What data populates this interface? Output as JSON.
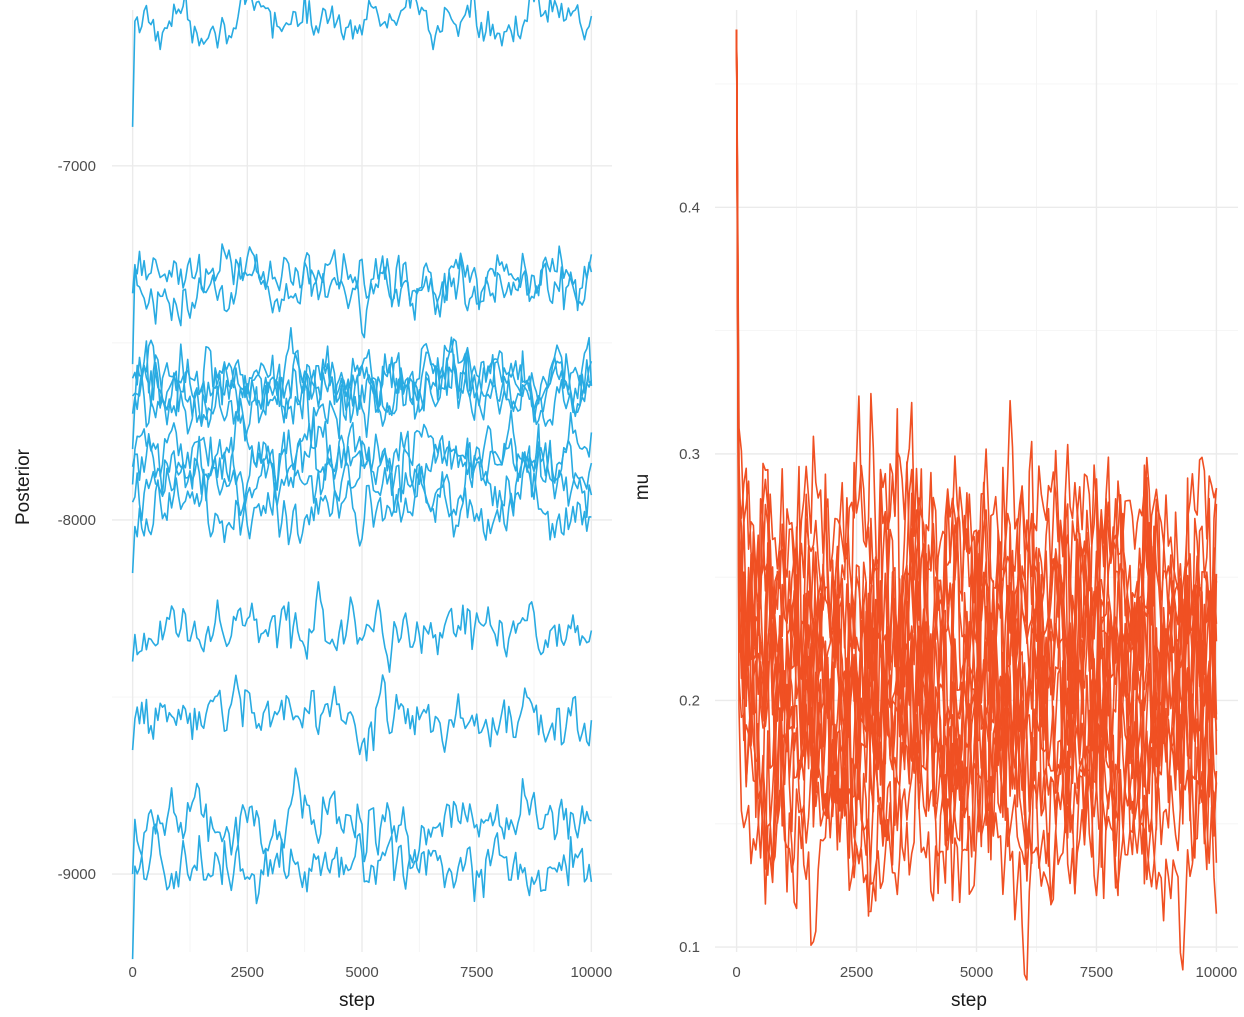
{
  "chart_data": [
    {
      "type": "line",
      "xlabel": "step",
      "ylabel": "Posterior",
      "xlim": [
        0,
        10000
      ],
      "ylim": [
        -9220,
        -6560
      ],
      "x_ticks": [
        0,
        2500,
        5000,
        7500,
        10000
      ],
      "x_tick_labels": [
        "0",
        "2500",
        "5000",
        "7500",
        "10000"
      ],
      "y_ticks": [
        -9000,
        -8000,
        -7000
      ],
      "y_tick_labels": [
        "-9000",
        "-8000",
        "-7000"
      ],
      "grid": true,
      "color": "#29abe2",
      "series": [
        {
          "start": -6890,
          "level": -6590,
          "noise": 30
        },
        {
          "start": -7560,
          "level": -7310,
          "noise": 35
        },
        {
          "start": -7360,
          "level": -7350,
          "noise": 35
        },
        {
          "start": -7800,
          "level": -7600,
          "noise": 40
        },
        {
          "start": -7650,
          "level": -7610,
          "noise": 40
        },
        {
          "start": -7700,
          "level": -7630,
          "noise": 40
        },
        {
          "start": -7600,
          "level": -7660,
          "noise": 40
        },
        {
          "start": -7900,
          "level": -7800,
          "noise": 40
        },
        {
          "start": -7850,
          "level": -7840,
          "noise": 40
        },
        {
          "start": -7950,
          "level": -7900,
          "noise": 40
        },
        {
          "start": -8150,
          "level": -7980,
          "noise": 40
        },
        {
          "start": -8400,
          "level": -8310,
          "noise": 35
        },
        {
          "start": -8650,
          "level": -8560,
          "noise": 35
        },
        {
          "start": -9000,
          "level": -8850,
          "noise": 40
        },
        {
          "start": -9240,
          "level": -8980,
          "noise": 40
        }
      ]
    },
    {
      "type": "line",
      "xlabel": "step",
      "ylabel": "mu",
      "xlim": [
        0,
        10000
      ],
      "ylim": [
        0.098,
        0.48
      ],
      "x_ticks": [
        0,
        2500,
        5000,
        7500,
        10000
      ],
      "x_tick_labels": [
        "0",
        "2500",
        "5000",
        "7500",
        "10000"
      ],
      "y_ticks": [
        0.1,
        0.2,
        0.3,
        0.4
      ],
      "y_tick_labels": [
        "0.1",
        "0.2",
        "0.3",
        "0.4"
      ],
      "grid": true,
      "color": "#f05023",
      "start": 0.472,
      "series": [
        {
          "level": 0.145,
          "noise": 0.015
        },
        {
          "level": 0.155,
          "noise": 0.015
        },
        {
          "level": 0.175,
          "noise": 0.02
        },
        {
          "level": 0.185,
          "noise": 0.02
        },
        {
          "level": 0.19,
          "noise": 0.02
        },
        {
          "level": 0.195,
          "noise": 0.025
        },
        {
          "level": 0.2,
          "noise": 0.025
        },
        {
          "level": 0.205,
          "noise": 0.025
        },
        {
          "level": 0.21,
          "noise": 0.025
        },
        {
          "level": 0.215,
          "noise": 0.025
        },
        {
          "level": 0.22,
          "noise": 0.025
        },
        {
          "level": 0.225,
          "noise": 0.025
        },
        {
          "level": 0.235,
          "noise": 0.025
        },
        {
          "level": 0.245,
          "noise": 0.02
        },
        {
          "level": 0.255,
          "noise": 0.02
        },
        {
          "level": 0.265,
          "noise": 0.015
        }
      ]
    }
  ]
}
